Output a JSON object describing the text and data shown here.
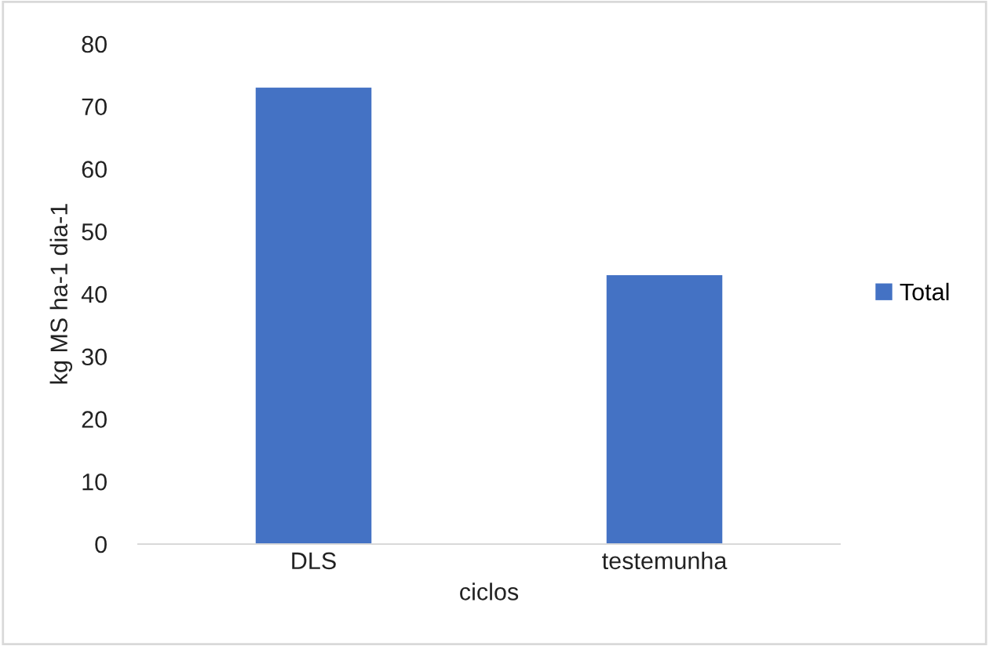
{
  "chart_data": {
    "type": "bar",
    "xlabel": "ciclos",
    "ylabel": "kg MS ha-1 dia-1",
    "categories": [
      "DLS",
      "testemunha"
    ],
    "series": [
      {
        "name": "Total",
        "color": "#4472c4",
        "values": [
          73,
          43
        ]
      }
    ],
    "ylim": [
      0,
      80
    ],
    "yticks": [
      0,
      10,
      20,
      30,
      40,
      50,
      60,
      70,
      80
    ],
    "grid": false,
    "legend": "right"
  }
}
